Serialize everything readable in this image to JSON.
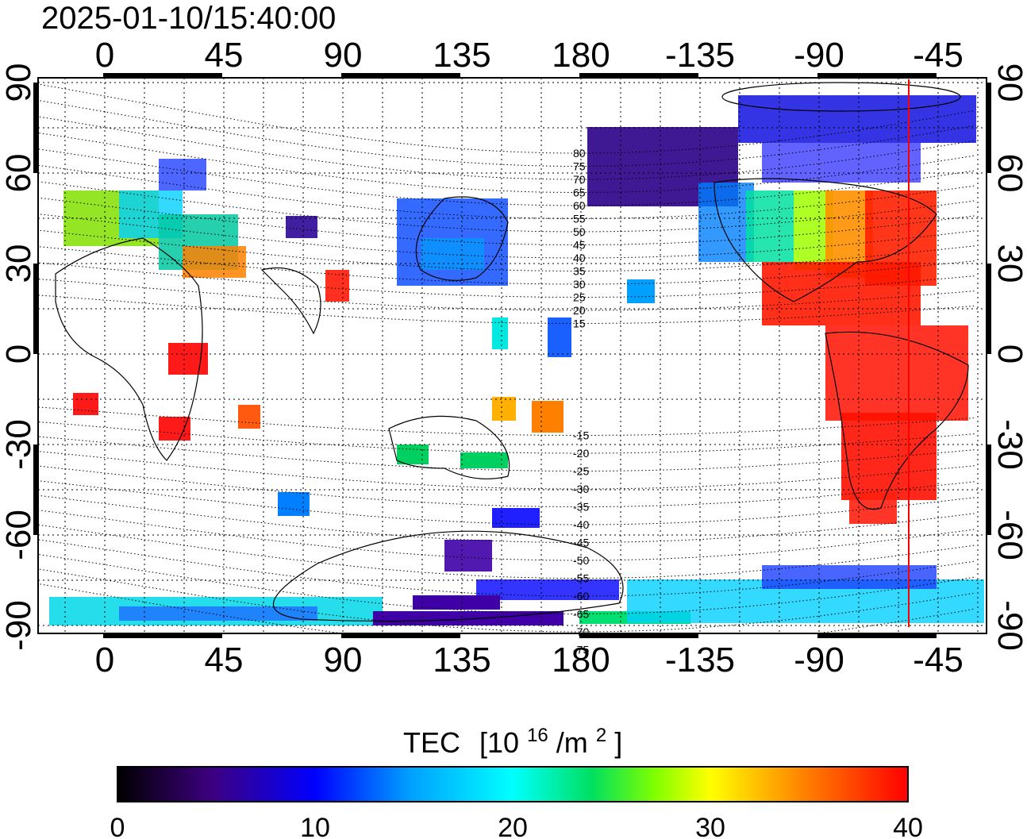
{
  "timestamp": "2025-01-10/15:40:00",
  "map": {
    "lon_labels": [
      "0",
      "45",
      "90",
      "135",
      "180",
      "-135",
      "-90",
      "-45"
    ],
    "lat_labels": [
      "90",
      "60",
      "30",
      "0",
      "-30",
      "-60",
      "-90"
    ],
    "magnetic_lat_labels": [
      "80",
      "75",
      "70",
      "65",
      "60",
      "55",
      "50",
      "45",
      "40",
      "35",
      "30",
      "25",
      "20",
      "15",
      "-15",
      "-20",
      "-25",
      "-30",
      "-35",
      "-40",
      "-45",
      "-50",
      "-55",
      "-60",
      "-65",
      "-70",
      "-75"
    ],
    "terminator_longitude": -55,
    "terminator_color": "#ff0000"
  },
  "colorbar": {
    "title": "TEC",
    "unit_base": "[10",
    "unit_exp": "16",
    "unit_mid": "/m",
    "unit_exp2": "2",
    "unit_end": "]",
    "tick_labels": [
      "0",
      "10",
      "20",
      "30",
      "40"
    ],
    "range": [
      0,
      40
    ],
    "colors": [
      "#000000",
      "#3d0080",
      "#0000ff",
      "#00a0ff",
      "#00ffff",
      "#00e060",
      "#80ff00",
      "#ffff00",
      "#ff8000",
      "#ff0000"
    ]
  }
}
